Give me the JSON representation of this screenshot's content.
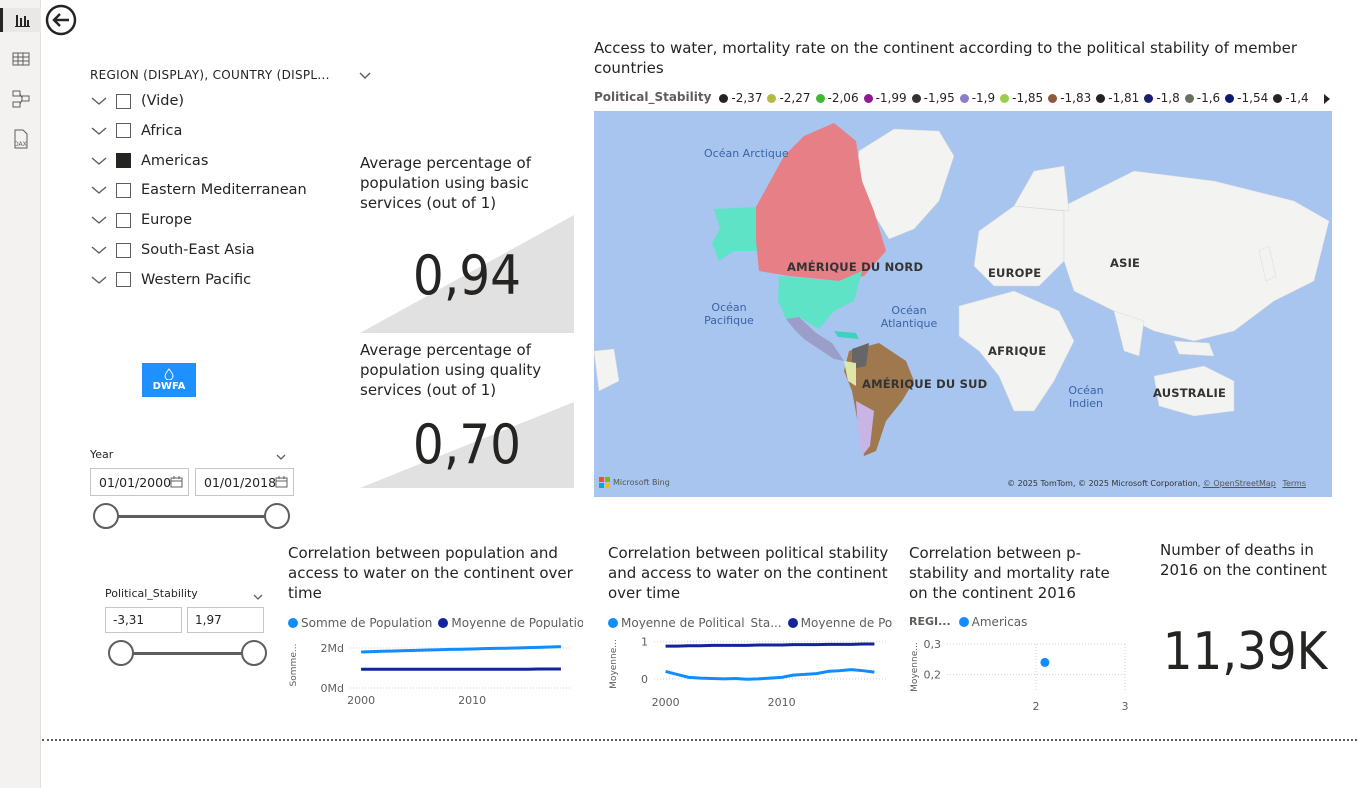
{
  "nav": {
    "icons": [
      "report-view-icon",
      "table-view-icon",
      "model-view-icon",
      "dax-query-icon"
    ]
  },
  "region_slicer": {
    "header": "REGION (DISPLAY), COUNTRY (DISPL...",
    "items": [
      {
        "label": "(Vide)",
        "checked": false
      },
      {
        "label": "Africa",
        "checked": false
      },
      {
        "label": "Americas",
        "checked": true
      },
      {
        "label": "Eastern Mediterranean",
        "checked": false
      },
      {
        "label": "Europe",
        "checked": false
      },
      {
        "label": "South-East Asia",
        "checked": false
      },
      {
        "label": "Western Pacific",
        "checked": false
      }
    ]
  },
  "logo": {
    "text": "DWFA"
  },
  "year_slicer": {
    "label": "Year",
    "from": "01/01/2000",
    "to": "01/01/2018"
  },
  "stability_slicer": {
    "label": "Political_Stability",
    "min": "-3,31",
    "max": "1,97"
  },
  "card_basic": {
    "title": "Average percentage of population using basic services (out of 1)",
    "value": "0,94"
  },
  "card_quality": {
    "title": "Average percentage of population using quality services (out of 1)",
    "value": "0,70"
  },
  "map": {
    "title": "Access to water, mortality rate on the continent according to the political stability of member countries",
    "legend_title": "Political_Stability",
    "legend": [
      {
        "label": "-2,37",
        "color": "#252423"
      },
      {
        "label": "-2,27",
        "color": "#b5b842"
      },
      {
        "label": "-2,06",
        "color": "#3fb935"
      },
      {
        "label": "-1,99",
        "color": "#8e1a8e"
      },
      {
        "label": "-1,95",
        "color": "#333333"
      },
      {
        "label": "-1,9",
        "color": "#8a80c8"
      },
      {
        "label": "-1,85",
        "color": "#9ccc4c"
      },
      {
        "label": "-1,83",
        "color": "#8b5a3c"
      },
      {
        "label": "-1,81",
        "color": "#252423"
      },
      {
        "label": "-1,8",
        "color": "#1a1f6e"
      },
      {
        "label": "-1,6",
        "color": "#6a7060"
      },
      {
        "label": "-1,54",
        "color": "#0d1a6e"
      },
      {
        "label": "-1,4",
        "color": "#252423"
      }
    ],
    "continents": {
      "north_america": "AMÉRIQUE DU NORD",
      "south_america": "AMÉRIQUE DU SUD",
      "europe": "EUROPE",
      "asia": "ASIE",
      "africa": "AFRIQUE",
      "australia": "AUSTRALIE"
    },
    "oceans": {
      "arctic": "Océan Arctique",
      "pacific": "Océan Pacifique",
      "atlantic": "Océan Atlantique",
      "indian": "Océan Indien"
    },
    "attribution": "© 2025 TomTom, © 2025 Microsoft Corporation,",
    "osm_link": "© OpenStreetMap",
    "terms_link": "Terms",
    "bing": "Microsoft Bing"
  },
  "chart_population": {
    "title": "Correlation between population and access to water on the continent over time",
    "legend": [
      {
        "label": "Somme de Population",
        "color": "#118dff"
      },
      {
        "label": "Moyenne de Population...",
        "color": "#12239e"
      }
    ],
    "y_axis_label": "Somme...",
    "y_ticks": [
      "2Md",
      "0Md"
    ],
    "x_ticks": [
      "2000",
      "2010"
    ]
  },
  "chart_stability": {
    "title": "Correlation between political stability and access to water on the continent over time",
    "legend": [
      {
        "label": "Moyenne de Political_Sta...",
        "color": "#118dff"
      },
      {
        "label": "Moyenne de Pop...",
        "color": "#12239e"
      }
    ],
    "y_axis_label": "Moyenne...",
    "y_ticks": [
      "1",
      "0"
    ],
    "x_ticks": [
      "2000",
      "2010"
    ]
  },
  "chart_scatter": {
    "title": "Correlation between p-stability and mortality rate on the continent 2016",
    "legend_title": "REGI...",
    "legend": [
      {
        "label": "Americas",
        "color": "#118dff"
      }
    ],
    "y_axis_label": "Moyenne...",
    "y_ticks": [
      "0,3",
      "0,2"
    ],
    "x_ticks": [
      "2",
      "3"
    ]
  },
  "card_deaths": {
    "title": "Number of deaths in 2016 on the continent",
    "value": "11,39K"
  },
  "chart_data": [
    {
      "type": "line",
      "x": [
        2000,
        2001,
        2002,
        2003,
        2004,
        2005,
        2006,
        2007,
        2008,
        2009,
        2010,
        2011,
        2012,
        2013,
        2014,
        2015,
        2016,
        2017,
        2018
      ],
      "series": [
        {
          "name": "Somme de Population",
          "values": [
            1.8,
            1.82,
            1.84,
            1.85,
            1.87,
            1.88,
            1.9,
            1.91,
            1.93,
            1.94,
            1.95,
            1.97,
            1.98,
            1.99,
            2.0,
            2.02,
            2.03,
            2.05,
            2.07
          ]
        },
        {
          "name": "Moyenne de Population...",
          "values": [
            0.94,
            0.94,
            0.94,
            0.94,
            0.94,
            0.94,
            0.94,
            0.94,
            0.94,
            0.94,
            0.94,
            0.94,
            0.94,
            0.94,
            0.94,
            0.94,
            0.95,
            0.95,
            0.95
          ]
        }
      ],
      "title": "Correlation between population and access to water on the continent over time",
      "ylabel": "Somme...",
      "ylim": [
        0,
        2.3
      ],
      "xlim": [
        1999,
        2019
      ]
    },
    {
      "type": "line",
      "x": [
        2000,
        2001,
        2002,
        2003,
        2004,
        2005,
        2006,
        2007,
        2008,
        2009,
        2010,
        2011,
        2012,
        2013,
        2014,
        2015,
        2016,
        2017,
        2018
      ],
      "series": [
        {
          "name": "Moyenne de Political_Sta...",
          "values": [
            0.2,
            0.12,
            0.04,
            0.02,
            0.01,
            0.0,
            0.01,
            -0.01,
            0.0,
            0.02,
            0.04,
            0.1,
            0.12,
            0.14,
            0.2,
            0.22,
            0.25,
            0.22,
            0.18
          ]
        },
        {
          "name": "Moyenne de Pop...",
          "values": [
            0.88,
            0.88,
            0.89,
            0.89,
            0.9,
            0.9,
            0.9,
            0.9,
            0.91,
            0.91,
            0.91,
            0.92,
            0.92,
            0.92,
            0.93,
            0.93,
            0.93,
            0.94,
            0.94
          ]
        }
      ],
      "title": "Correlation between political stability and access to water on the continent over time",
      "ylabel": "Moyenne...",
      "ylim": [
        -0.3,
        1.1
      ],
      "xlim": [
        1999,
        2019
      ]
    },
    {
      "type": "scatter",
      "series": [
        {
          "name": "Americas",
          "points": [
            {
              "x": 2.1,
              "y": 0.24
            }
          ]
        }
      ],
      "title": "Correlation between p-stability and mortality rate on the continent 2016",
      "ylabel": "Moyenne...",
      "xlim": [
        1,
        3
      ],
      "ylim": [
        0.15,
        0.3
      ]
    }
  ]
}
